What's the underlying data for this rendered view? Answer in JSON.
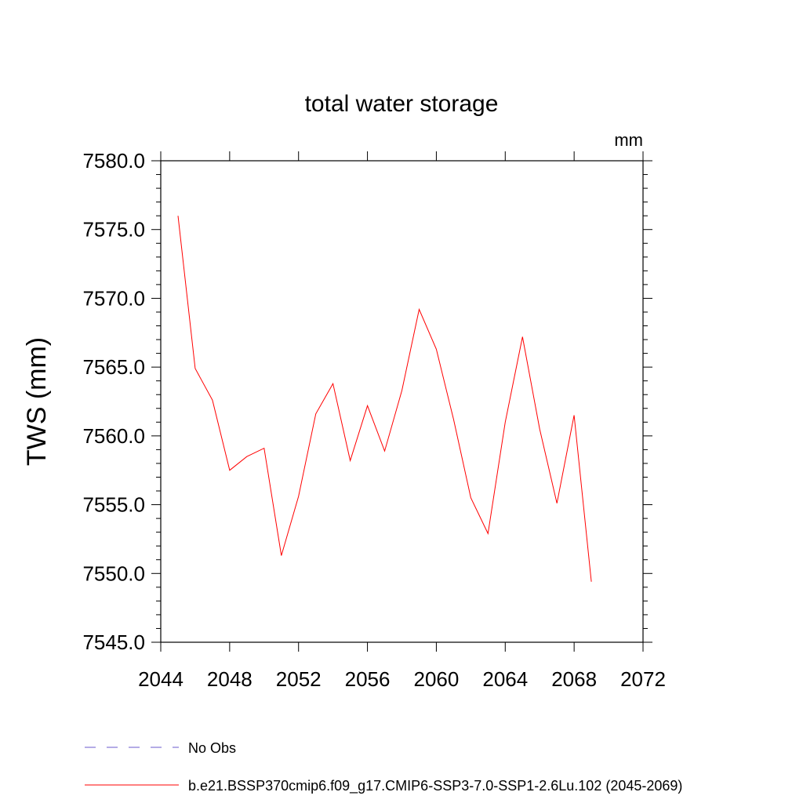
{
  "chart_data": {
    "type": "line",
    "title": "total water storage",
    "units": "mm",
    "ylabel": "TWS  (mm)",
    "xlabel": "",
    "xlim": [
      2044,
      2072
    ],
    "ylim": [
      7545.0,
      7580.0
    ],
    "xticks": [
      "2044",
      "2048",
      "2052",
      "2056",
      "2060",
      "2064",
      "2068",
      "2072"
    ],
    "yticks": [
      "7545.0",
      "7550.0",
      "7555.0",
      "7560.0",
      "7565.0",
      "7570.0",
      "7575.0",
      "7580.0"
    ],
    "grid": false,
    "legend_position": "bottom",
    "series": [
      {
        "name": "b.e21.BSSP370cmip6.f09_g17.CMIP6-SSP3-7.0-SSP1-2.6Lu.102 (2045-2069)",
        "color": "#ff0000",
        "style": "solid",
        "x": [
          2045,
          2046,
          2047,
          2048,
          2049,
          2050,
          2051,
          2052,
          2053,
          2054,
          2055,
          2056,
          2057,
          2058,
          2059,
          2060,
          2061,
          2062,
          2063,
          2064,
          2065,
          2066,
          2067,
          2068,
          2069
        ],
        "y": [
          7576.0,
          7564.9,
          7562.6,
          7557.5,
          7558.5,
          7559.1,
          7551.3,
          7555.6,
          7561.6,
          7563.8,
          7558.2,
          7562.2,
          7558.9,
          7563.3,
          7569.2,
          7566.3,
          7561.2,
          7555.5,
          7552.9,
          7561.0,
          7567.2,
          7560.5,
          7555.1,
          7561.5,
          7549.4
        ]
      }
    ],
    "legend": [
      {
        "label": "No Obs",
        "color": "#6a5acd",
        "style": "dashed"
      },
      {
        "label": "b.e21.BSSP370cmip6.f09_g17.CMIP6-SSP3-7.0-SSP1-2.6Lu.102 (2045-2069)",
        "color": "#ff0000",
        "style": "solid"
      }
    ]
  }
}
